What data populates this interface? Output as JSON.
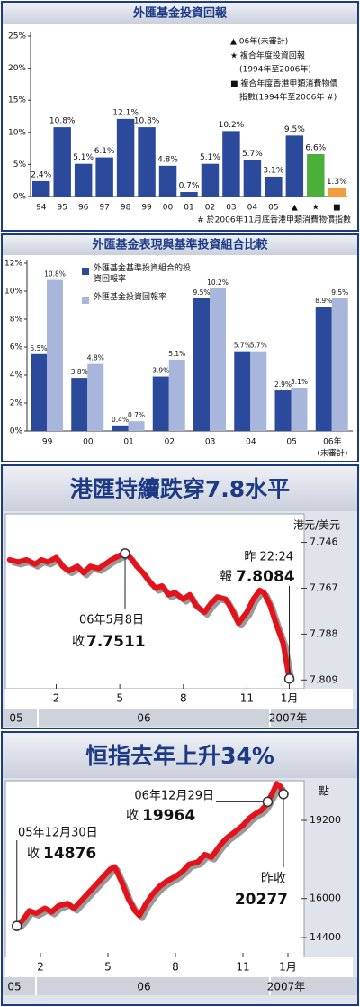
{
  "chart_data": [
    {
      "type": "bar",
      "title": "外匯基金投資回報",
      "categories": [
        "94",
        "95",
        "96",
        "97",
        "98",
        "99",
        "00",
        "01",
        "02",
        "03",
        "04",
        "05",
        "▲",
        "★",
        "■"
      ],
      "values": [
        2.4,
        10.8,
        5.1,
        6.1,
        12.1,
        10.8,
        4.8,
        0.7,
        5.1,
        10.2,
        5.7,
        3.1,
        9.5,
        6.6,
        1.3
      ],
      "value_labels": [
        "2.4%",
        "10.8%",
        "5.1%",
        "6.1%",
        "12.1%",
        "10.8%",
        "4.8%",
        "0.7%",
        "5.1%",
        "10.2%",
        "5.7%",
        "3.1%",
        "9.5%",
        "6.6%",
        "1.3%"
      ],
      "colors": [
        "#2b4a9b",
        "#2b4a9b",
        "#2b4a9b",
        "#2b4a9b",
        "#2b4a9b",
        "#2b4a9b",
        "#2b4a9b",
        "#2b4a9b",
        "#2b4a9b",
        "#2b4a9b",
        "#2b4a9b",
        "#2b4a9b",
        "#2b4a9b",
        "#4caf3a",
        "#f39c3b"
      ],
      "ylim": [
        0,
        25
      ],
      "yticks": [
        {
          "value": 0,
          "label": "0%"
        },
        {
          "value": 5,
          "label": "5%"
        },
        {
          "value": 10,
          "label": "10%"
        },
        {
          "value": 15,
          "label": "15%"
        },
        {
          "value": 20,
          "label": "20%"
        },
        {
          "value": 25,
          "label": "25%"
        }
      ],
      "legend_notes": [
        "▲ 06年(未審計)",
        "★ 複合年度投資回報",
        "(1994年至2006年)",
        "■ 複合年度香港甲類消費物價",
        "指數(1994年至2006年 #)"
      ],
      "footnote": "# 於2006年11月底香港甲類消費物價指數"
    },
    {
      "type": "bar",
      "title": "外匯基金表現與基準投資組合比較",
      "categories": [
        "99",
        "00",
        "01",
        "02",
        "03",
        "04",
        "05",
        "06年"
      ],
      "x_note": "(未審計)",
      "series": [
        {
          "name": "外匯基金基準投資組合的投資回報率",
          "color": "#2b4a9b",
          "values": [
            5.5,
            3.8,
            0.4,
            3.9,
            9.5,
            5.7,
            2.9,
            8.9
          ],
          "value_labels": [
            "5.5%",
            "3.8%",
            "0.4%",
            "3.9%",
            "9.5%",
            "5.7%",
            "2.9%",
            "8.9%"
          ]
        },
        {
          "name": "外匯基金投資回報率",
          "color": "#a9b6dc",
          "values": [
            10.8,
            4.8,
            0.7,
            5.1,
            10.2,
            5.7,
            3.1,
            9.5
          ],
          "value_labels": [
            "10.8%",
            "4.8%",
            "0.7%",
            "5.1%",
            "10.2%",
            "5.7%",
            "3.1%",
            "9.5%"
          ]
        }
      ],
      "ylim": [
        0,
        12
      ],
      "yticks": [
        {
          "value": 0,
          "label": "0%"
        },
        {
          "value": 2,
          "label": "2%"
        },
        {
          "value": 4,
          "label": "4%"
        },
        {
          "value": 6,
          "label": "6%"
        },
        {
          "value": 8,
          "label": "8%"
        },
        {
          "value": 10,
          "label": "10%"
        },
        {
          "value": 12,
          "label": "12%"
        }
      ]
    },
    {
      "type": "line",
      "title": "港匯持續跌穿7.8水平",
      "y_unit": "港元/美元",
      "color": "#e3121b",
      "x": [
        -1.2,
        -0.8,
        -0.4,
        0,
        0.3,
        0.6,
        1.0,
        1.3,
        1.6,
        2.0,
        2.3,
        2.6,
        3.0,
        3.3,
        3.6,
        4.0,
        4.25,
        4.5,
        4.8,
        5.1,
        5.4,
        5.7,
        6.0,
        6.3,
        6.6,
        7.0,
        7.3,
        7.6,
        8.0,
        8.3,
        8.6,
        9.0,
        9.3,
        9.6,
        10.0,
        10.3,
        10.6,
        10.8,
        11.1,
        11.4,
        11.7,
        11.85,
        12.0
      ],
      "values": [
        7.754,
        7.755,
        7.754,
        7.756,
        7.754,
        7.755,
        7.753,
        7.757,
        7.759,
        7.757,
        7.76,
        7.757,
        7.758,
        7.756,
        7.754,
        7.752,
        7.7511,
        7.753,
        7.757,
        7.76,
        7.764,
        7.767,
        7.766,
        7.77,
        7.769,
        7.772,
        7.77,
        7.775,
        7.778,
        7.774,
        7.771,
        7.772,
        7.777,
        7.783,
        7.778,
        7.772,
        7.768,
        7.769,
        7.775,
        7.784,
        7.792,
        7.8,
        7.8084
      ],
      "xlim": [
        -1.4,
        12.7
      ],
      "xticks": [
        {
          "value": 1,
          "label": "2"
        },
        {
          "value": 4,
          "label": "5"
        },
        {
          "value": 7,
          "label": "8"
        },
        {
          "value": 10,
          "label": "11"
        },
        {
          "value": 12,
          "label": "1月"
        }
      ],
      "ylim": [
        7.813,
        7.733
      ],
      "yticks": [
        7.746,
        7.767,
        7.788,
        7.809
      ],
      "periods": [
        "05",
        "06",
        "2007年"
      ],
      "annotations": [
        {
          "date": "06年5月8日",
          "label": "收",
          "x": 4.25,
          "value": 7.7511
        },
        {
          "date": "昨 22:24",
          "label": "報",
          "x": 12.0,
          "value": 7.8084
        }
      ]
    },
    {
      "type": "line",
      "title": "恒指去年上升34%",
      "y_unit": "點",
      "color": "#e3121b",
      "x": [
        -0.05,
        0.2,
        0.5,
        0.8,
        1.2,
        1.5,
        1.8,
        2.2,
        2.5,
        2.8,
        3.2,
        3.5,
        3.8,
        4.1,
        4.3,
        4.6,
        4.9,
        5.2,
        5.4,
        5.7,
        6.0,
        6.3,
        6.6,
        7.0,
        7.3,
        7.6,
        8.0,
        8.3,
        8.6,
        9.0,
        9.3,
        9.6,
        10.0,
        10.3,
        10.6,
        10.8,
        11.0,
        11.1,
        11.3,
        11.5,
        11.65,
        11.8
      ],
      "values": [
        14876,
        15100,
        15500,
        15400,
        15600,
        15450,
        15700,
        15800,
        15600,
        15900,
        16300,
        16600,
        16900,
        17200,
        17300,
        16700,
        16000,
        15500,
        15300,
        15800,
        16200,
        16500,
        16700,
        16900,
        17100,
        17400,
        17500,
        17800,
        17700,
        18200,
        18500,
        18700,
        19000,
        19300,
        19500,
        19600,
        19800,
        19964,
        20300,
        20700,
        20600,
        20277
      ],
      "xlim": [
        -0.56,
        12.72
      ],
      "xticks": [
        {
          "value": 1,
          "label": "2"
        },
        {
          "value": 4,
          "label": "5"
        },
        {
          "value": 7,
          "label": "8"
        },
        {
          "value": 10,
          "label": "11"
        },
        {
          "value": 12,
          "label": "1月"
        }
      ],
      "ylim": [
        13590,
        20825
      ],
      "yticks": [
        14400,
        16000,
        19200
      ],
      "periods": [
        "05",
        "06",
        "2007年"
      ],
      "annotations": [
        {
          "date": "05年12月30日",
          "label": "收",
          "x": -0.05,
          "value": 14876
        },
        {
          "date": "06年12月29日",
          "label": "收",
          "x": 11.1,
          "value": 19964
        },
        {
          "label": "昨收",
          "x": 11.8,
          "value": 20277
        }
      ]
    }
  ]
}
